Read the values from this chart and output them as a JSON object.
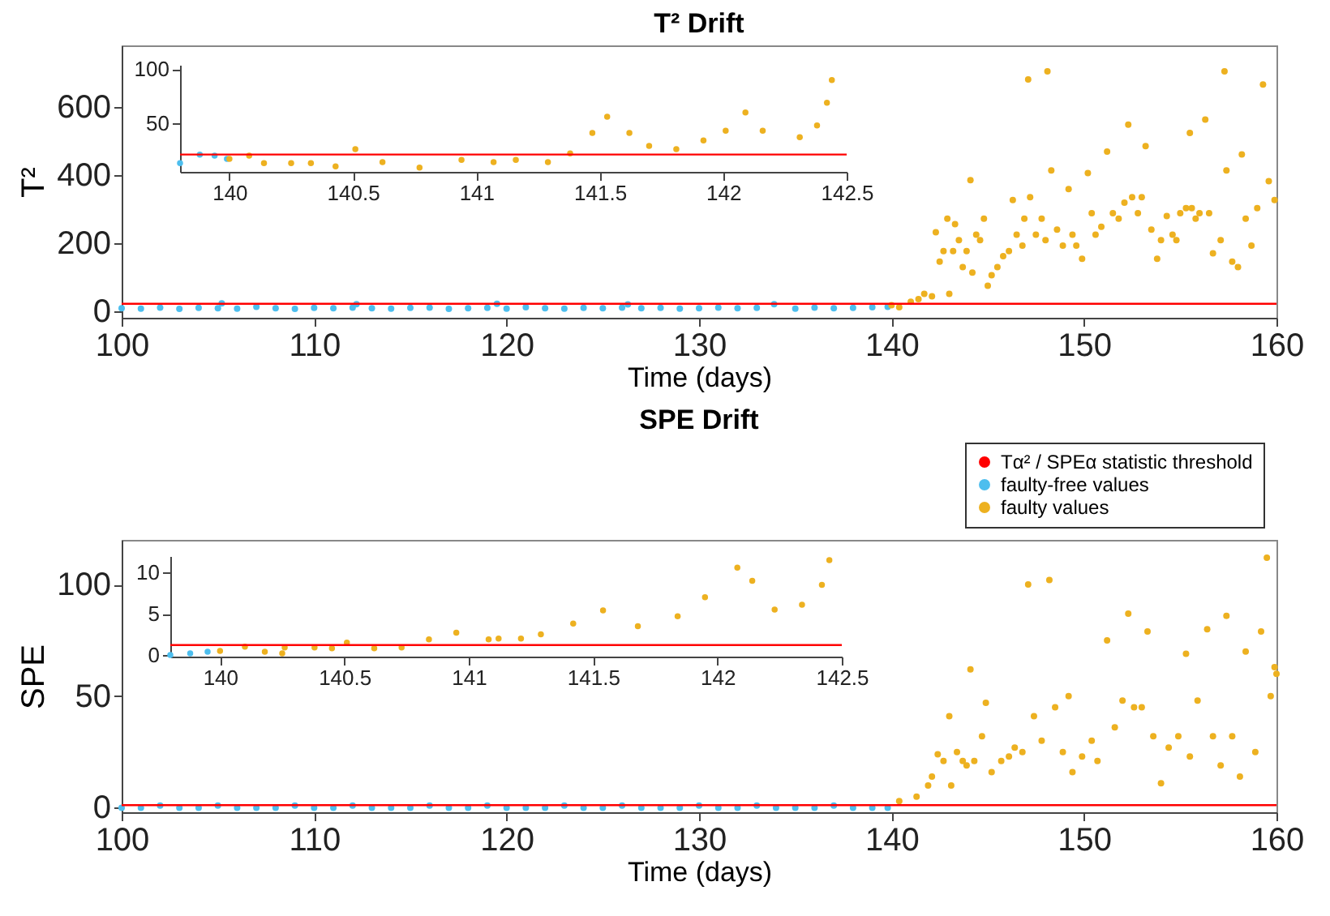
{
  "chart_data": [
    {
      "type": "scatter",
      "title": "T² Drift",
      "xlabel": "Time (days)",
      "ylabel": "T²",
      "xlim": [
        100,
        160
      ],
      "xticks": [
        100,
        110,
        120,
        130,
        140,
        150,
        160
      ],
      "ylim": [
        -20,
        780
      ],
      "yticks": [
        0,
        200,
        400,
        600
      ],
      "marker": "circle",
      "ref_lines": [
        {
          "axis": "y",
          "value": 21,
          "color": "#ff0000"
        }
      ],
      "series": [
        {
          "color": "#4dbeee",
          "x": [
            100,
            101,
            102,
            103,
            104,
            105,
            105.2,
            106,
            107,
            108,
            109,
            110,
            111,
            112,
            112.2,
            113,
            114,
            115,
            116,
            117,
            118,
            119,
            119.5,
            120,
            121,
            122,
            123,
            124,
            125,
            126,
            126.3,
            127,
            128,
            129,
            130,
            131,
            132,
            133,
            133.9,
            135,
            136,
            137,
            138,
            139,
            139.8
          ],
          "values": [
            8,
            7,
            10,
            6,
            9,
            8,
            22,
            7,
            12,
            8,
            6,
            9,
            8,
            10,
            20,
            8,
            7,
            9,
            10,
            6,
            8,
            9,
            21,
            7,
            11,
            8,
            7,
            9,
            8,
            10,
            19,
            8,
            9,
            7,
            8,
            10,
            8,
            9,
            20,
            7,
            10,
            8,
            9,
            11,
            12
          ]
        },
        {
          "color": "#edb120",
          "x": [
            140,
            140.4,
            141.0,
            141.4,
            141.7,
            142.1,
            142.3,
            142.5,
            142.7,
            142.9,
            143.0,
            143.2,
            143.3,
            143.5,
            143.7,
            143.9,
            144.1,
            144.2,
            144.4,
            144.6,
            144.8,
            145.0,
            145.2,
            145.5,
            145.8,
            146.1,
            146.3,
            146.5,
            146.8,
            146.9,
            147.1,
            147.2,
            147.5,
            147.8,
            148.0,
            148.1,
            148.3,
            148.6,
            148.9,
            149.2,
            149.4,
            149.6,
            149.9,
            150.2,
            150.4,
            150.6,
            150.9,
            151.2,
            151.5,
            151.8,
            152.1,
            152.3,
            152.5,
            152.8,
            153.0,
            153.2,
            153.5,
            153.8,
            154.0,
            154.3,
            154.6,
            154.8,
            155.0,
            155.3,
            155.5,
            155.6,
            155.8,
            156.0,
            156.3,
            156.5,
            156.7,
            157.1,
            157.3,
            157.4,
            157.7,
            158.0,
            158.2,
            158.4,
            158.7,
            159.0,
            159.3,
            159.6,
            159.9
          ],
          "values": [
            17,
            11,
            27,
            35,
            50,
            43,
            231,
            145,
            176,
            271,
            50,
            176,
            255,
            208,
            129,
            176,
            384,
            113,
            224,
            208,
            271,
            74,
            105,
            129,
            161,
            176,
            326,
            224,
            192,
            271,
            680,
            334,
            224,
            271,
            208,
            704,
            413,
            239,
            192,
            358,
            224,
            192,
            153,
            405,
            287,
            224,
            247,
            468,
            287,
            271,
            318,
            547,
            334,
            287,
            334,
            484,
            239,
            153,
            208,
            279,
            224,
            208,
            287,
            302,
            523,
            302,
            271,
            287,
            562,
            287,
            169,
            208,
            704,
            413,
            145,
            129,
            460,
            271,
            192,
            302,
            665,
            381,
            326
          ]
        }
      ]
    },
    {
      "type": "scatter",
      "xlim": [
        139.8,
        142.5
      ],
      "xticks": [
        140,
        140.5,
        141,
        141.5,
        142,
        142.5
      ],
      "ylim": [
        5,
        104
      ],
      "yticks": [
        50,
        100
      ],
      "marker": "circle",
      "ref_lines": [
        {
          "axis": "y",
          "value": 21,
          "color": "#ff0000"
        }
      ],
      "series": [
        {
          "color": "#4dbeee",
          "x": [
            139.8,
            139.88,
            139.94,
            139.99
          ],
          "values": [
            13,
            21,
            20,
            17
          ]
        },
        {
          "color": "#edb120",
          "x": [
            140,
            140.08,
            140.14,
            140.25,
            140.33,
            140.43,
            140.51,
            140.62,
            140.77,
            140.94,
            141.07,
            141.16,
            141.29,
            141.38,
            141.47,
            141.53,
            141.62,
            141.7,
            141.81,
            141.92,
            142.01,
            142.09,
            142.16,
            142.31,
            142.38,
            142.42,
            142.44
          ],
          "values": [
            17,
            20,
            13,
            13,
            13,
            10,
            26,
            14,
            9,
            16,
            14,
            16,
            14,
            22,
            41,
            56,
            41,
            29,
            26,
            34,
            43,
            60,
            43,
            37,
            48,
            69,
            90
          ]
        }
      ]
    },
    {
      "type": "scatter",
      "title": "SPE Drift",
      "xlabel": "Time (days)",
      "ylabel": "SPE",
      "xlim": [
        100,
        160
      ],
      "xticks": [
        100,
        110,
        120,
        130,
        140,
        150,
        160
      ],
      "ylim": [
        -2,
        120
      ],
      "yticks": [
        0,
        50,
        100
      ],
      "marker": "circle",
      "legend": "top right",
      "ref_lines": [
        {
          "axis": "y",
          "value": 1.2,
          "color": "#ff0000",
          "label": "Tα² / SPEα statistic threshold"
        }
      ],
      "series": [
        {
          "name": "faulty-free values",
          "color": "#4dbeee",
          "x": [
            100,
            101,
            102,
            103,
            104,
            105,
            106,
            107,
            108,
            109,
            110,
            111,
            112,
            113,
            114,
            115,
            116,
            117,
            118,
            119,
            120,
            121,
            122,
            123,
            124,
            125,
            126,
            127,
            128,
            129,
            130,
            131,
            132,
            133,
            134,
            135,
            136,
            137,
            138,
            139,
            139.8
          ],
          "values": [
            0,
            0,
            1,
            0,
            0,
            1,
            0,
            0,
            0,
            1,
            0,
            0,
            1,
            0,
            0,
            0,
            1,
            0,
            0,
            1,
            0,
            0,
            0,
            1,
            0,
            0,
            1,
            0,
            0,
            0,
            1,
            0,
            0,
            1,
            0,
            0,
            0,
            1,
            0,
            0,
            0
          ]
        },
        {
          "name": "faulty values",
          "color": "#edb120",
          "x": [
            140.4,
            141.3,
            141.9,
            142.1,
            142.4,
            142.7,
            143.0,
            143.1,
            143.4,
            143.7,
            143.9,
            144.1,
            144.3,
            144.7,
            144.9,
            145.2,
            145.7,
            146.1,
            146.4,
            146.8,
            147.1,
            147.4,
            147.8,
            148.2,
            148.5,
            148.9,
            149.2,
            149.4,
            149.9,
            150.4,
            150.7,
            151.2,
            151.6,
            152.0,
            152.3,
            152.6,
            153.0,
            153.3,
            153.6,
            154.0,
            154.4,
            154.9,
            155.3,
            155.5,
            155.9,
            156.4,
            156.7,
            157.1,
            157.4,
            157.7,
            158.1,
            158.4,
            158.9,
            159.2,
            159.5,
            159.7,
            159.9,
            160.0
          ],
          "values": [
            3,
            5,
            10,
            14,
            24,
            21,
            41,
            10,
            25,
            21,
            19,
            62,
            21,
            32,
            47,
            16,
            21,
            23,
            27,
            25,
            100,
            41,
            30,
            102,
            45,
            25,
            50,
            16,
            23,
            30,
            21,
            75,
            36,
            48,
            87,
            45,
            45,
            79,
            32,
            11,
            27,
            32,
            69,
            23,
            48,
            80,
            32,
            19,
            86,
            32,
            14,
            70,
            25,
            79,
            112,
            50,
            63,
            60
          ]
        }
      ]
    },
    {
      "type": "scatter",
      "xlim": [
        139.8,
        142.5
      ],
      "xticks": [
        140,
        140.5,
        141,
        141.5,
        142,
        142.5
      ],
      "ylim": [
        -0.2,
        12
      ],
      "yticks": [
        0,
        5,
        10
      ],
      "marker": "circle",
      "ref_lines": [
        {
          "axis": "y",
          "value": 1.2,
          "color": "#ff0000"
        }
      ],
      "series": [
        {
          "color": "#4dbeee",
          "x": [
            139.8,
            139.88,
            139.95
          ],
          "values": [
            0,
            0.2,
            0.4
          ]
        },
        {
          "color": "#edb120",
          "x": [
            140,
            140.1,
            140.18,
            140.25,
            140.26,
            140.38,
            140.45,
            140.51,
            140.62,
            140.73,
            140.84,
            140.95,
            141.08,
            141.12,
            141.21,
            141.29,
            141.42,
            141.54,
            141.68,
            141.84,
            141.95,
            142.08,
            142.14,
            142.23,
            142.34,
            142.42,
            142.45
          ],
          "values": [
            0.5,
            1,
            0.4,
            0.2,
            0.9,
            0.9,
            0.8,
            1.5,
            0.8,
            0.9,
            1.9,
            2.7,
            1.9,
            2,
            2,
            2.5,
            3.8,
            5.4,
            3.5,
            4.7,
            7,
            10.6,
            9,
            5.5,
            6.1,
            8.5,
            11.5
          ]
        }
      ]
    }
  ]
}
